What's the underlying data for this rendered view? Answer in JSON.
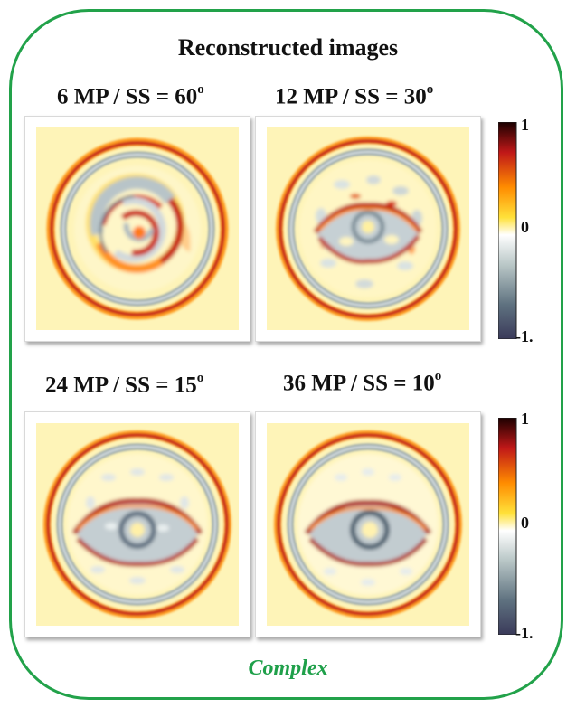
{
  "title": "Reconstructed images",
  "caption": "Complex",
  "panels": [
    {
      "mp": "6 MP / SS = 60",
      "deg": "o"
    },
    {
      "mp": "12 MP / SS = 30",
      "deg": "o"
    },
    {
      "mp": "24 MP / SS = 15",
      "deg": "o"
    },
    {
      "mp": "36 MP / SS = 10",
      "deg": "o"
    }
  ],
  "colorbar": {
    "top_label": "1",
    "mid_label": "0",
    "bottom_label": "-1.",
    "colors": [
      "#1a0000",
      "#c01818",
      "#ff8c00",
      "#ffe13a",
      "#ffffff",
      "#b8c6c6",
      "#5f7280",
      "#3a3a5a"
    ]
  },
  "colors": {
    "frame": "#22a24a",
    "caption": "#1fa04a",
    "background_field": "#fef4b8"
  }
}
